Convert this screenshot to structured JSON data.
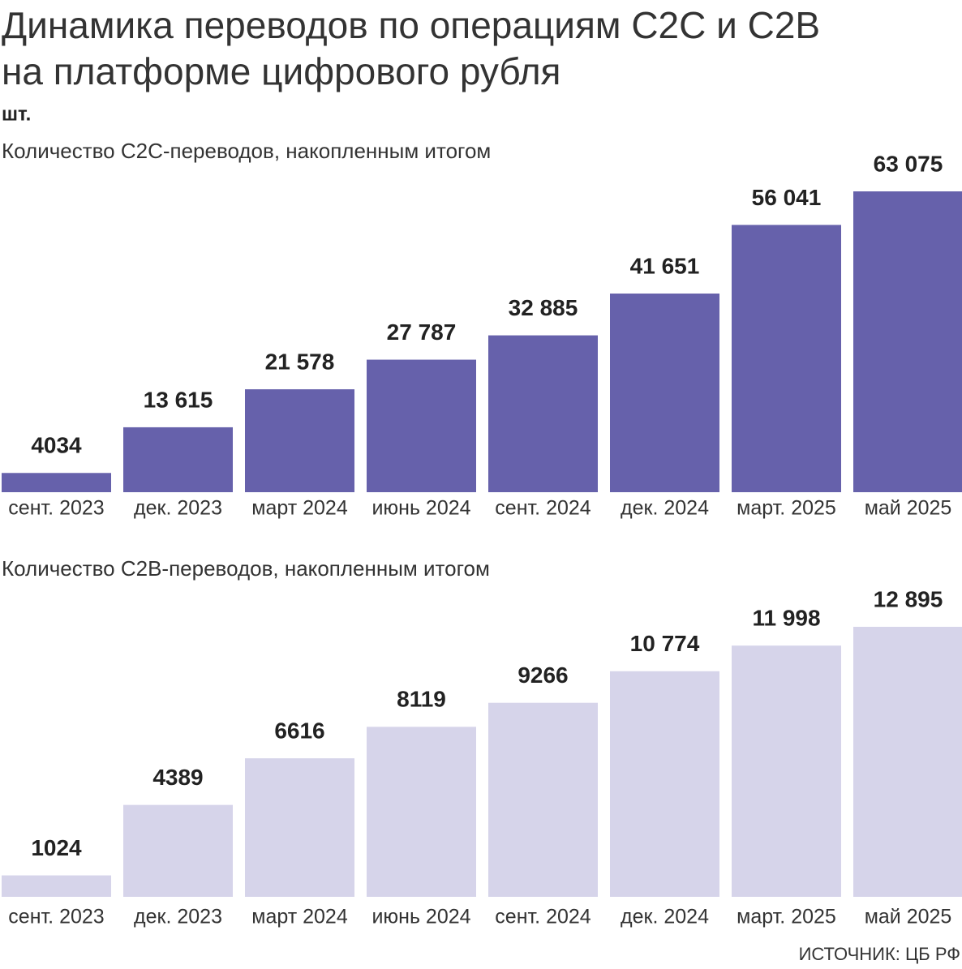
{
  "title": [
    "Динамика переводов по операциям C2C и C2B",
    "на платформе цифрового рубля"
  ],
  "unit": "шт.",
  "source": "ИСТОЧНИК: ЦБ РФ",
  "chart_data": [
    {
      "type": "bar",
      "title": "Количество C2C-переводов, накопленным итогом",
      "categories": [
        "сент. 2023",
        "дек. 2023",
        "март 2024",
        "июнь 2024",
        "сент. 2024",
        "дек. 2024",
        "март. 2025",
        "май 2025"
      ],
      "values": [
        4034,
        13615,
        21578,
        27787,
        32885,
        41651,
        56041,
        63075
      ],
      "value_labels": [
        "4034",
        "13 615",
        "21 578",
        "27 787",
        "32 885",
        "41 651",
        "56 041",
        "63 075"
      ],
      "color": "#6661ab"
    },
    {
      "type": "bar",
      "title": "Количество C2B-переводов, накопленным итогом",
      "categories": [
        "сент. 2023",
        "дек. 2023",
        "март 2024",
        "июнь 2024",
        "сент. 2024",
        "дек. 2024",
        "март. 2025",
        "май 2025"
      ],
      "values": [
        1024,
        4389,
        6616,
        8119,
        9266,
        10774,
        11998,
        12895
      ],
      "value_labels": [
        "1024",
        "4389",
        "6616",
        "8119",
        "9266",
        "10 774",
        "11 998",
        "12 895"
      ],
      "color": "#d6d4ea"
    }
  ]
}
